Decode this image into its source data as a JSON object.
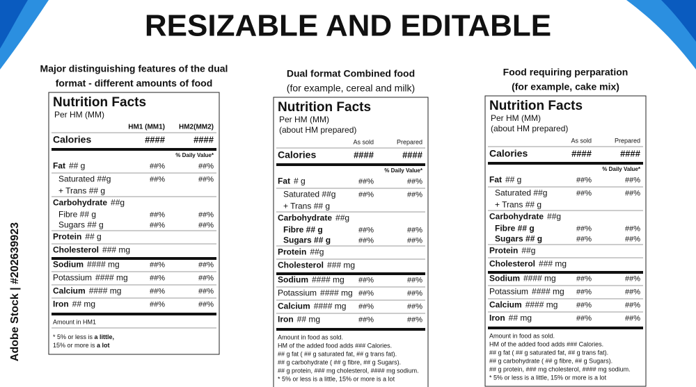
{
  "header": {
    "title": "RESIZABLE AND EDITABLE"
  },
  "watermark": "Adobe Stock | #202639923",
  "panels": [
    {
      "caption": [
        "Major distinguishing features of the dual",
        "format - different amounts of food"
      ],
      "caption_bold": [
        true,
        true
      ],
      "title": "Nutrition Facts",
      "serving": [
        "Per HM (MM)"
      ],
      "columns": [
        "HM1 (MM1)",
        "HM2(MM2)"
      ],
      "calories": {
        "name": "Calories",
        "values": [
          "####",
          "####"
        ]
      },
      "daily_value": "% Daily Value*",
      "rows": [
        {
          "name": "Fat",
          "amount": "## g",
          "values": [
            "##%",
            "##%"
          ],
          "bold": true
        },
        {
          "name": "Saturated ##g",
          "values": [
            "##%",
            "##%"
          ],
          "indent": true
        },
        {
          "name": "+ Trans ## g",
          "indent": true,
          "tight": true
        },
        {
          "name": "Carbohydrate",
          "amount": "##g",
          "bold": true
        },
        {
          "name": "Fibre ## g",
          "values": [
            "##%",
            "##%"
          ],
          "indent": true,
          "tight": true
        },
        {
          "name": "Sugars ## g",
          "values": [
            "##%",
            "##%"
          ],
          "indent": true,
          "tight": true
        },
        {
          "name": "Protein",
          "amount": "## g",
          "bold": true
        },
        {
          "name": "Cholesterol",
          "amount": "### mg",
          "bold": true
        },
        {
          "name": "Sodium",
          "amount": "#### mg",
          "values": [
            "##%",
            "##%"
          ],
          "bold": true,
          "thick": true
        },
        {
          "name": "Potassium",
          "amount": "#### mg",
          "values": [
            "##%",
            "##%"
          ]
        },
        {
          "name": "Calcium",
          "amount": "#### mg",
          "values": [
            "##%",
            "##%"
          ],
          "bold": true
        },
        {
          "name": "Iron",
          "amount": "## mg",
          "values": [
            "##%",
            "##%"
          ],
          "bold": true
        }
      ],
      "footer": [
        "Amount in HM1"
      ],
      "footnote": [
        [
          "* 5% or less is ",
          "a little,"
        ],
        [
          "15% or more is ",
          "a lot"
        ]
      ]
    },
    {
      "caption": [
        "Dual format Combined food",
        "(for example, cereal and milk)"
      ],
      "caption_bold": [
        true,
        false
      ],
      "title": "Nutrition Facts",
      "serving": [
        "Per HM (MM)",
        "(about HM prepared)"
      ],
      "columns": [
        "As sold",
        "Prepared"
      ],
      "calories": {
        "name": "Calories",
        "values": [
          "####",
          "####"
        ]
      },
      "daily_value": "% Daily Value*",
      "rows": [
        {
          "name": "Fat",
          "amount": "# g",
          "values": [
            "##%",
            "##%"
          ],
          "bold": true
        },
        {
          "name": "Saturated  ##g",
          "values": [
            "##%",
            "##%"
          ],
          "indent": true
        },
        {
          "name": "+ Trans ## g",
          "indent": true,
          "tight": true
        },
        {
          "name": "Carbohydrate",
          "amount": "##g",
          "bold": true
        },
        {
          "name": "Fibre  ## g",
          "values": [
            "##%",
            "##%"
          ],
          "indent": true,
          "tight": true,
          "bold": true
        },
        {
          "name": "Sugars ## g",
          "values": [
            "##%",
            "##%"
          ],
          "indent": true,
          "tight": true,
          "bold": true
        },
        {
          "name": "Protein",
          "amount": "##g",
          "bold": true
        },
        {
          "name": "Cholesterol",
          "amount": "### mg",
          "bold": true
        },
        {
          "name": "Sodium",
          "amount": "#### mg",
          "values": [
            "##%",
            "##%"
          ],
          "bold": true,
          "thick": true
        },
        {
          "name": "Potassium",
          "amount": "#### mg",
          "values": [
            "##%",
            "##%"
          ]
        },
        {
          "name": "Calcium",
          "amount": "#### mg",
          "values": [
            "##%",
            "##%"
          ],
          "bold": true
        },
        {
          "name": "Iron",
          "amount": "## mg",
          "values": [
            "##%",
            "##%"
          ],
          "bold": true
        }
      ],
      "footer": [
        "Amount in food as sold.",
        "HM of the added food adds  ### Calories.",
        "## g fat ( ## g saturated fat,  ## g trans fat).",
        "## g carbohydrate ( ## g fibre,  ## g Sugars).",
        "## g protein, ### mg cholesterol,  #### mg sodium.",
        "* 5% or less is a little, 15% or more is a lot"
      ]
    },
    {
      "caption": [
        "Food requiring perparation",
        "(for example, cake mix)"
      ],
      "caption_bold": [
        true,
        true
      ],
      "title": "Nutrition Facts",
      "serving": [
        "Per HM (MM)",
        "(about HM prepared)"
      ],
      "columns": [
        "As sold",
        "Prepared"
      ],
      "calories": {
        "name": "Calories",
        "values": [
          "####",
          "####"
        ]
      },
      "daily_value": "% Daily Value*",
      "rows": [
        {
          "name": "Fat",
          "amount": "## g",
          "values": [
            "##%",
            "##%"
          ],
          "bold": true
        },
        {
          "name": "Saturated  ##g",
          "values": [
            "##%",
            "##%"
          ],
          "indent": true
        },
        {
          "name": "+ Trans ## g",
          "indent": true,
          "tight": true
        },
        {
          "name": "Carbohydrate",
          "amount": "##g",
          "bold": true
        },
        {
          "name": "Fibre  ## g",
          "values": [
            "##%",
            "##%"
          ],
          "indent": true,
          "tight": true,
          "bold": true
        },
        {
          "name": "Sugars ## g",
          "values": [
            "##%",
            "##%"
          ],
          "indent": true,
          "tight": true,
          "bold": true
        },
        {
          "name": "Protein",
          "amount": "##g",
          "bold": true
        },
        {
          "name": "Cholesterol",
          "amount": "### mg",
          "bold": true
        },
        {
          "name": "Sodium",
          "amount": "#### mg",
          "values": [
            "##%",
            "##%"
          ],
          "bold": true,
          "thick": true
        },
        {
          "name": "Potassium",
          "amount": "#### mg",
          "values": [
            "##%",
            "##%"
          ]
        },
        {
          "name": "Calcium",
          "amount": "#### mg",
          "values": [
            "##%",
            "##%"
          ],
          "bold": true
        },
        {
          "name": "Iron",
          "amount": "## mg",
          "values": [
            "##%",
            "##%"
          ],
          "bold": true
        }
      ],
      "footer": [
        "Amount in food as sold.",
        "HM of the added food adds  ### Calories.",
        "## g fat ( ## g saturated fat,  ## g trans fat).",
        "## g carbohydrate ( ## g fibre,  ## g Sugars).",
        "## g protein, ### mg cholesterol,  #### mg sodium.",
        "* 5% or less is a little, 15% or more is a lot"
      ]
    }
  ]
}
